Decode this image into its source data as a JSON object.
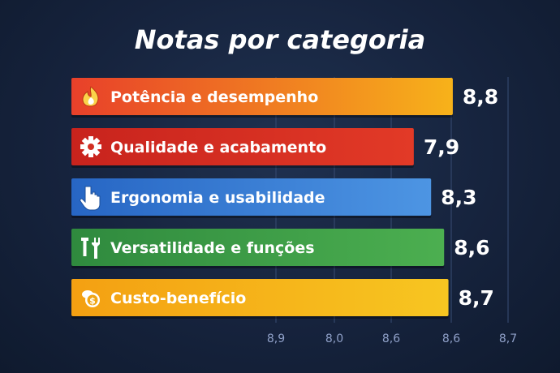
{
  "chart_data": {
    "type": "bar",
    "orientation": "horizontal",
    "title": "Notas por categoria",
    "categories": [
      "Potência e desempenho",
      "Qualidade e acabamento",
      "Ergonomia e usabilidade",
      "Versatilidade e funções",
      "Custo-benefício"
    ],
    "values": [
      8.8,
      7.9,
      8.3,
      8.6,
      8.7
    ],
    "value_labels": [
      "8,8",
      "7,9",
      "8,3",
      "8,6",
      "8,7"
    ],
    "icons": [
      "fire-icon",
      "gear-icon",
      "pointer-hand-icon",
      "tools-icon",
      "money-bag-icon"
    ],
    "colors": [
      [
        "#e8402a",
        "#f7b21a"
      ],
      [
        "#c8231d",
        "#e23a27"
      ],
      [
        "#2766c4",
        "#4d95e3"
      ],
      [
        "#2f8a3e",
        "#4caf50"
      ],
      [
        "#f4a012",
        "#f7c621"
      ]
    ],
    "x_tick_labels": [
      "8,9",
      "8,0",
      "8,6",
      "8,6",
      "8,7"
    ],
    "xlim": [
      0,
      9.4
    ],
    "grid": true
  }
}
